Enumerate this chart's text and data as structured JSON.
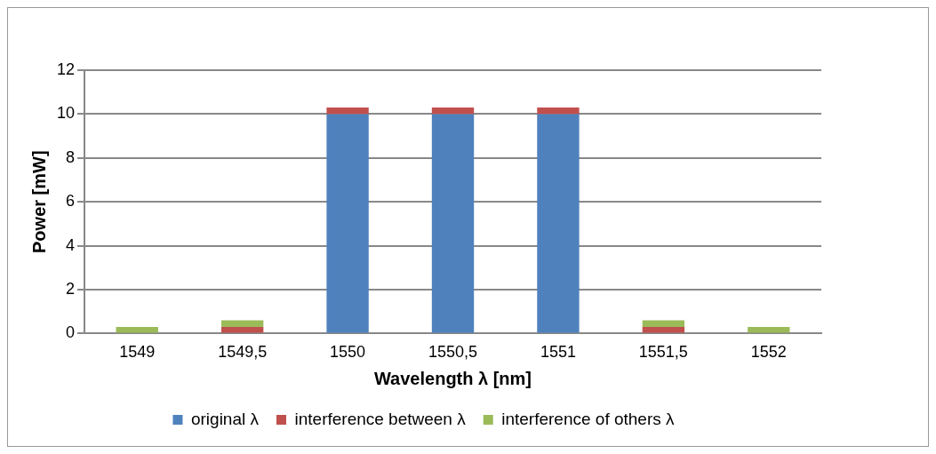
{
  "chart_data": {
    "type": "bar",
    "stacked": true,
    "xlabel": "Wavelength λ [nm]",
    "ylabel": "Power [mW]",
    "categories": [
      "1549",
      "1549,5",
      "1550",
      "1550,5",
      "1551",
      "1551,5",
      "1552"
    ],
    "series": [
      {
        "name": "original λ",
        "color": "#4f81bd",
        "values": [
          0,
          0,
          10,
          10,
          10,
          0,
          0
        ]
      },
      {
        "name": "interference between λ",
        "color": "#c0504d",
        "values": [
          0,
          0.3,
          0.3,
          0.3,
          0.3,
          0.3,
          0
        ]
      },
      {
        "name": "interference of others λ",
        "color": "#9bbb59",
        "values": [
          0.3,
          0.3,
          0,
          0,
          0,
          0.3,
          0.3
        ]
      }
    ],
    "ylim": [
      0,
      12
    ],
    "yticks": [
      0,
      2,
      4,
      6,
      8,
      10,
      12
    ],
    "grid": "y",
    "legend": "bottom"
  }
}
